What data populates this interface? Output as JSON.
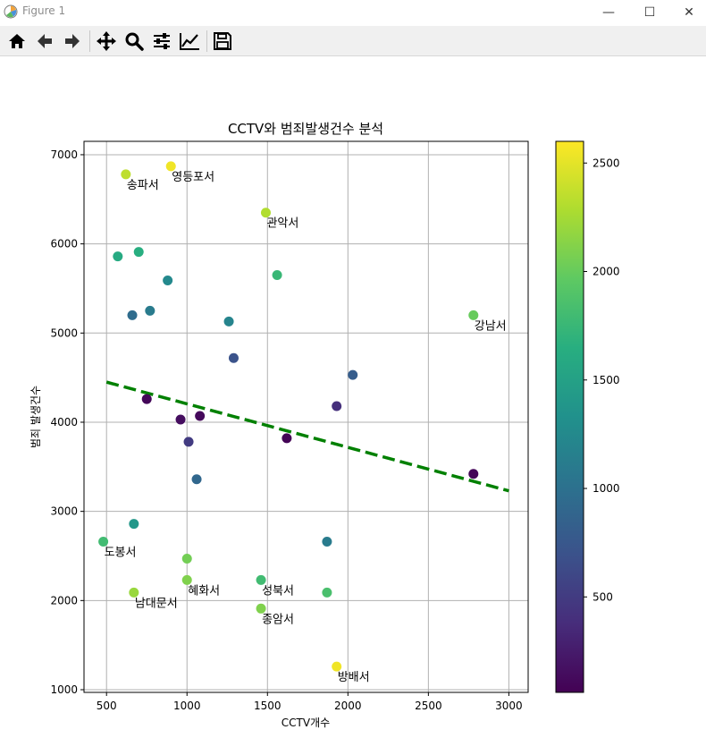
{
  "window": {
    "title": "Figure 1",
    "minimize": "—",
    "maximize": "☐",
    "close": "✕"
  },
  "toolbar": {
    "buttons": [
      {
        "name": "home-button",
        "icon": "home-icon"
      },
      {
        "name": "back-button",
        "icon": "arrow-left-icon"
      },
      {
        "name": "forward-button",
        "icon": "arrow-right-icon"
      },
      {
        "name": "pan-button",
        "icon": "move-icon"
      },
      {
        "name": "zoom-button",
        "icon": "magnifier-icon"
      },
      {
        "name": "subplots-button",
        "icon": "sliders-icon"
      },
      {
        "name": "edit-axis-button",
        "icon": "line-chart-icon"
      },
      {
        "name": "save-button",
        "icon": "floppy-disk-icon"
      }
    ]
  },
  "chart_data": {
    "type": "scatter",
    "title": "CCTV와 범죄발생건수 분석",
    "xlabel": "CCTV개수",
    "ylabel": "범죄 발생건수",
    "xlim": [
      360,
      3120
    ],
    "ylim": [
      970,
      7150
    ],
    "xticks": [
      500,
      1000,
      1500,
      2000,
      2500,
      3000
    ],
    "yticks": [
      1000,
      2000,
      3000,
      4000,
      5000,
      6000,
      7000
    ],
    "grid": true,
    "colormap": "viridis",
    "colorbar": {
      "range": [
        60,
        2600
      ],
      "ticks": [
        500,
        1000,
        1500,
        2000,
        2500
      ]
    },
    "points": [
      {
        "x": 620,
        "y": 6780,
        "c": 2350,
        "label": "송파서"
      },
      {
        "x": 900,
        "y": 6870,
        "c": 2550,
        "label": "영등포서"
      },
      {
        "x": 1490,
        "y": 6350,
        "c": 2300,
        "label": "관악서"
      },
      {
        "x": 2780,
        "y": 5200,
        "c": 2000,
        "label": "강남서"
      },
      {
        "x": 480,
        "y": 2660,
        "c": 1800,
        "label": "도봉서"
      },
      {
        "x": 670,
        "y": 2090,
        "c": 2200,
        "label": "남대문서"
      },
      {
        "x": 1000,
        "y": 2230,
        "c": 2100,
        "label": "혜화서"
      },
      {
        "x": 1460,
        "y": 2230,
        "c": 1800,
        "label": "성북서"
      },
      {
        "x": 1460,
        "y": 1910,
        "c": 2100,
        "label": "종암서"
      },
      {
        "x": 1930,
        "y": 1260,
        "c": 2550,
        "label": "방배서"
      },
      {
        "x": 570,
        "y": 5860,
        "c": 1600,
        "label": ""
      },
      {
        "x": 700,
        "y": 5910,
        "c": 1650,
        "label": ""
      },
      {
        "x": 880,
        "y": 5590,
        "c": 1250,
        "label": ""
      },
      {
        "x": 1560,
        "y": 5650,
        "c": 1750,
        "label": ""
      },
      {
        "x": 660,
        "y": 5200,
        "c": 950,
        "label": ""
      },
      {
        "x": 770,
        "y": 5250,
        "c": 1100,
        "label": ""
      },
      {
        "x": 1260,
        "y": 5130,
        "c": 1200,
        "label": ""
      },
      {
        "x": 1290,
        "y": 4720,
        "c": 700,
        "label": ""
      },
      {
        "x": 2030,
        "y": 4530,
        "c": 800,
        "label": ""
      },
      {
        "x": 750,
        "y": 4260,
        "c": 100,
        "label": ""
      },
      {
        "x": 960,
        "y": 4030,
        "c": 150,
        "label": ""
      },
      {
        "x": 1080,
        "y": 4070,
        "c": 120,
        "label": ""
      },
      {
        "x": 1930,
        "y": 4180,
        "c": 400,
        "label": ""
      },
      {
        "x": 1010,
        "y": 3780,
        "c": 500,
        "label": ""
      },
      {
        "x": 1620,
        "y": 3820,
        "c": 80,
        "label": ""
      },
      {
        "x": 1060,
        "y": 3360,
        "c": 900,
        "label": ""
      },
      {
        "x": 2780,
        "y": 3420,
        "c": 90,
        "label": ""
      },
      {
        "x": 670,
        "y": 2860,
        "c": 1400,
        "label": ""
      },
      {
        "x": 1870,
        "y": 2660,
        "c": 1100,
        "label": ""
      },
      {
        "x": 1000,
        "y": 2470,
        "c": 2050,
        "label": ""
      },
      {
        "x": 1870,
        "y": 2090,
        "c": 1850,
        "label": ""
      }
    ],
    "trendline": {
      "x": [
        500,
        3000
      ],
      "y": [
        4450,
        3230
      ],
      "color": "#008000",
      "style": "dashed"
    }
  }
}
